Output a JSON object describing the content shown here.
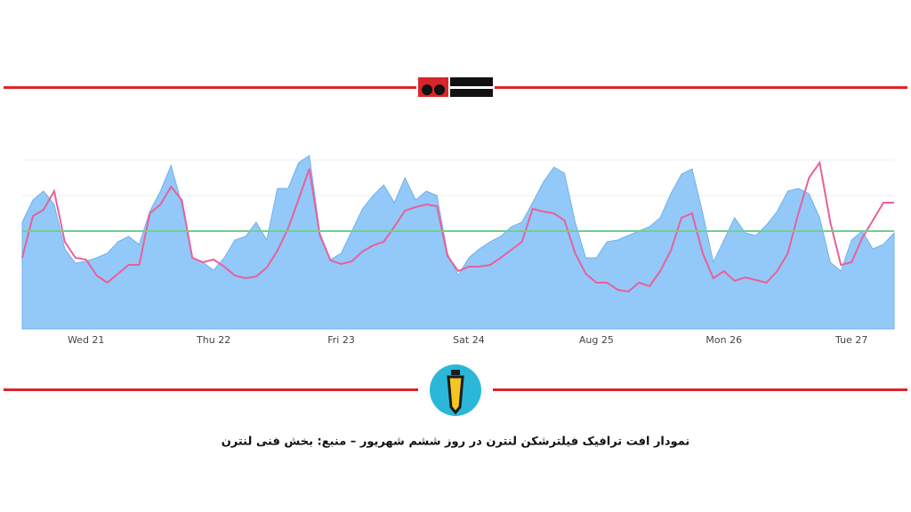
{
  "chart_data": {
    "type": "area_line",
    "caption": "نمودار افت ترافیک فیلترشکن لنترن در روز ششم شهریور – منبع: بخش فنی لنترن",
    "categories": [
      null,
      null,
      null,
      null,
      null,
      null,
      "Wed 21",
      null,
      null,
      null,
      null,
      null,
      null,
      null,
      null,
      null,
      null,
      null,
      "Thu 22",
      null,
      null,
      null,
      null,
      null,
      null,
      null,
      null,
      null,
      null,
      null,
      "Fri 23",
      null,
      null,
      null,
      null,
      null,
      null,
      null,
      null,
      null,
      null,
      null,
      "Sat 24",
      null,
      null,
      null,
      null,
      null,
      null,
      null,
      null,
      null,
      null,
      null,
      "Aug 25",
      null,
      null,
      null,
      null,
      null,
      null,
      null,
      null,
      null,
      null,
      null,
      "Mon 26",
      null,
      null,
      null,
      null,
      null,
      null,
      null,
      null,
      null,
      null,
      null,
      "Tue 27",
      null,
      null,
      null,
      null
    ],
    "series": [
      {
        "color": "#93c9f8",
        "values": [
          120,
          145,
          155,
          140,
          90,
          74,
          76,
          80,
          85,
          98,
          104,
          95,
          132,
          155,
          184,
          140,
          80,
          75,
          66,
          80,
          100,
          104,
          120,
          100,
          158,
          158,
          187,
          195,
          108,
          78,
          85,
          110,
          135,
          150,
          162,
          142,
          170,
          145,
          155,
          150,
          85,
          60,
          80,
          90,
          98,
          104,
          115,
          120,
          142,
          165,
          182,
          175,
          120,
          80,
          80,
          98,
          100,
          105,
          110,
          115,
          125,
          152,
          174,
          180,
          130,
          75,
          100,
          125,
          108,
          105,
          117,
          132,
          155,
          158,
          152,
          125,
          75,
          65,
          100,
          110,
          90,
          95,
          108
        ]
      },
      {
        "color": "#e8609a",
        "values": [
          80,
          127,
          134,
          155,
          98,
          80,
          78,
          60,
          52,
          62,
          72,
          72,
          130,
          140,
          160,
          145,
          80,
          75,
          78,
          70,
          60,
          57,
          59,
          69,
          88,
          113,
          146,
          180,
          105,
          77,
          73,
          76,
          87,
          94,
          98,
          115,
          133,
          137,
          140,
          138,
          82,
          65,
          70,
          70,
          72,
          80,
          89,
          98,
          135,
          132,
          130,
          122,
          85,
          62,
          52,
          52,
          44,
          42,
          52,
          48,
          65,
          88,
          125,
          130,
          85,
          57,
          65,
          54,
          58,
          55,
          52,
          65,
          85,
          130,
          170,
          187,
          120,
          72,
          75,
          102,
          122,
          142,
          142
        ]
      }
    ],
    "hline": {
      "value": 110,
      "color": "#6fd08c"
    },
    "ylim": [
      0,
      210
    ]
  }
}
